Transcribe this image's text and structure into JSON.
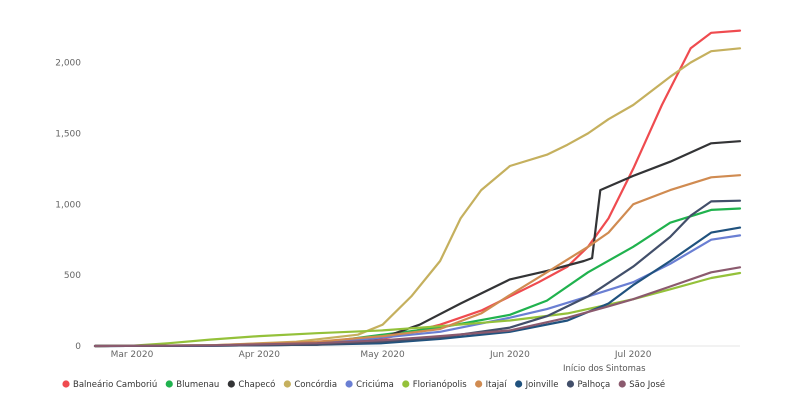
{
  "chart_data": {
    "type": "line",
    "title": "",
    "xlabel": "Início dos Sintomas",
    "ylabel": "",
    "ylim": [
      0,
      2300
    ],
    "y_ticks": [
      0,
      500,
      1000,
      1500,
      2000
    ],
    "y_tick_labels": [
      "0",
      "500",
      "1,000",
      "1,500",
      "2,000"
    ],
    "x_range": [
      "2020-02-21",
      "2020-07-27"
    ],
    "x_ticks": [
      "2020-03-01",
      "2020-04-01",
      "2020-05-01",
      "2020-06-01",
      "2020-07-01"
    ],
    "x_tick_labels": [
      "Mar 2020",
      "Apr 2020",
      "May 2020",
      "Jun 2020",
      "Jul 2020"
    ],
    "grid": false,
    "legend_position": "bottom-left",
    "series": [
      {
        "name": "Balneário Camboriú",
        "color": "#ef4b4f",
        "points": [
          [
            "2020-02-21",
            0
          ],
          [
            "2020-03-20",
            5
          ],
          [
            "2020-04-15",
            15
          ],
          [
            "2020-05-01",
            50
          ],
          [
            "2020-05-15",
            150
          ],
          [
            "2020-05-25",
            250
          ],
          [
            "2020-06-01",
            350
          ],
          [
            "2020-06-08",
            450
          ],
          [
            "2020-06-15",
            560
          ],
          [
            "2020-06-20",
            700
          ],
          [
            "2020-06-25",
            900
          ],
          [
            "2020-07-01",
            1250
          ],
          [
            "2020-07-08",
            1700
          ],
          [
            "2020-07-15",
            2100
          ],
          [
            "2020-07-20",
            2210
          ],
          [
            "2020-07-27",
            2225
          ]
        ]
      },
      {
        "name": "Blumenau",
        "color": "#20b24e",
        "points": [
          [
            "2020-02-21",
            0
          ],
          [
            "2020-03-20",
            5
          ],
          [
            "2020-04-15",
            20
          ],
          [
            "2020-05-01",
            80
          ],
          [
            "2020-05-15",
            130
          ],
          [
            "2020-06-01",
            220
          ],
          [
            "2020-06-10",
            320
          ],
          [
            "2020-06-20",
            520
          ],
          [
            "2020-07-01",
            700
          ],
          [
            "2020-07-10",
            870
          ],
          [
            "2020-07-20",
            960
          ],
          [
            "2020-07-27",
            970
          ]
        ]
      },
      {
        "name": "Chapecó",
        "color": "#333436",
        "points": [
          [
            "2020-02-21",
            0
          ],
          [
            "2020-03-20",
            2
          ],
          [
            "2020-04-15",
            10
          ],
          [
            "2020-05-01",
            60
          ],
          [
            "2020-05-10",
            150
          ],
          [
            "2020-05-20",
            300
          ],
          [
            "2020-06-01",
            470
          ],
          [
            "2020-06-10",
            530
          ],
          [
            "2020-06-19",
            600
          ],
          [
            "2020-06-21",
            620
          ],
          [
            "2020-06-23",
            1100
          ],
          [
            "2020-07-01",
            1200
          ],
          [
            "2020-07-10",
            1300
          ],
          [
            "2020-07-20",
            1430
          ],
          [
            "2020-07-27",
            1445
          ]
        ]
      },
      {
        "name": "Concórdia",
        "color": "#c5b05e",
        "points": [
          [
            "2020-02-21",
            0
          ],
          [
            "2020-03-20",
            5
          ],
          [
            "2020-04-10",
            30
          ],
          [
            "2020-04-25",
            80
          ],
          [
            "2020-05-01",
            150
          ],
          [
            "2020-05-08",
            350
          ],
          [
            "2020-05-15",
            600
          ],
          [
            "2020-05-20",
            900
          ],
          [
            "2020-05-25",
            1100
          ],
          [
            "2020-06-01",
            1270
          ],
          [
            "2020-06-10",
            1350
          ],
          [
            "2020-06-15",
            1420
          ],
          [
            "2020-06-20",
            1500
          ],
          [
            "2020-06-25",
            1600
          ],
          [
            "2020-07-01",
            1700
          ],
          [
            "2020-07-10",
            1900
          ],
          [
            "2020-07-15",
            2000
          ],
          [
            "2020-07-20",
            2080
          ],
          [
            "2020-07-27",
            2100
          ]
        ]
      },
      {
        "name": "Criciúma",
        "color": "#6a7fd3",
        "points": [
          [
            "2020-02-21",
            0
          ],
          [
            "2020-03-20",
            2
          ],
          [
            "2020-04-15",
            15
          ],
          [
            "2020-05-01",
            60
          ],
          [
            "2020-05-15",
            100
          ],
          [
            "2020-06-01",
            200
          ],
          [
            "2020-06-10",
            260
          ],
          [
            "2020-06-20",
            350
          ],
          [
            "2020-07-01",
            450
          ],
          [
            "2020-07-10",
            580
          ],
          [
            "2020-07-20",
            750
          ],
          [
            "2020-07-27",
            780
          ]
        ]
      },
      {
        "name": "Florianópolis",
        "color": "#94c13a",
        "points": [
          [
            "2020-02-21",
            0
          ],
          [
            "2020-03-01",
            2
          ],
          [
            "2020-03-10",
            20
          ],
          [
            "2020-03-20",
            45
          ],
          [
            "2020-04-01",
            70
          ],
          [
            "2020-04-15",
            90
          ],
          [
            "2020-05-01",
            110
          ],
          [
            "2020-05-15",
            140
          ],
          [
            "2020-06-01",
            180
          ],
          [
            "2020-06-15",
            230
          ],
          [
            "2020-07-01",
            330
          ],
          [
            "2020-07-10",
            400
          ],
          [
            "2020-07-20",
            480
          ],
          [
            "2020-07-27",
            515
          ]
        ]
      },
      {
        "name": "Itajaí",
        "color": "#d08b51",
        "points": [
          [
            "2020-02-21",
            0
          ],
          [
            "2020-03-20",
            5
          ],
          [
            "2020-04-15",
            30
          ],
          [
            "2020-05-01",
            70
          ],
          [
            "2020-05-15",
            120
          ],
          [
            "2020-05-25",
            230
          ],
          [
            "2020-06-01",
            360
          ],
          [
            "2020-06-10",
            520
          ],
          [
            "2020-06-20",
            700
          ],
          [
            "2020-06-25",
            800
          ],
          [
            "2020-07-01",
            1000
          ],
          [
            "2020-07-10",
            1100
          ],
          [
            "2020-07-20",
            1190
          ],
          [
            "2020-07-27",
            1205
          ]
        ]
      },
      {
        "name": "Joinville",
        "color": "#20527e",
        "points": [
          [
            "2020-02-21",
            0
          ],
          [
            "2020-03-20",
            2
          ],
          [
            "2020-04-15",
            10
          ],
          [
            "2020-05-01",
            20
          ],
          [
            "2020-05-15",
            50
          ],
          [
            "2020-06-01",
            100
          ],
          [
            "2020-06-15",
            180
          ],
          [
            "2020-06-25",
            300
          ],
          [
            "2020-07-01",
            430
          ],
          [
            "2020-07-10",
            600
          ],
          [
            "2020-07-20",
            800
          ],
          [
            "2020-07-27",
            835
          ]
        ]
      },
      {
        "name": "Palhoça",
        "color": "#424f6a",
        "points": [
          [
            "2020-02-21",
            0
          ],
          [
            "2020-03-20",
            2
          ],
          [
            "2020-04-15",
            10
          ],
          [
            "2020-05-01",
            30
          ],
          [
            "2020-05-15",
            60
          ],
          [
            "2020-06-01",
            130
          ],
          [
            "2020-06-10",
            210
          ],
          [
            "2020-06-20",
            350
          ],
          [
            "2020-07-01",
            560
          ],
          [
            "2020-07-10",
            770
          ],
          [
            "2020-07-15",
            920
          ],
          [
            "2020-07-20",
            1020
          ],
          [
            "2020-07-27",
            1025
          ]
        ]
      },
      {
        "name": "São José",
        "color": "#8b5a6e",
        "points": [
          [
            "2020-02-21",
            0
          ],
          [
            "2020-03-20",
            5
          ],
          [
            "2020-04-15",
            20
          ],
          [
            "2020-05-01",
            40
          ],
          [
            "2020-05-15",
            70
          ],
          [
            "2020-06-01",
            110
          ],
          [
            "2020-06-15",
            200
          ],
          [
            "2020-06-25",
            280
          ],
          [
            "2020-07-01",
            330
          ],
          [
            "2020-07-10",
            420
          ],
          [
            "2020-07-20",
            520
          ],
          [
            "2020-07-27",
            555
          ]
        ]
      }
    ]
  }
}
